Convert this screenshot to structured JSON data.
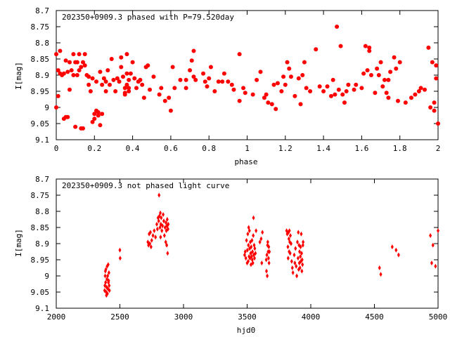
{
  "chart_data": [
    {
      "type": "scatter",
      "title": "202350+0909.3 phased with P=79.520day",
      "xlabel": "phase",
      "ylabel": "I[mag]",
      "xlim": [
        0,
        2
      ],
      "ylim": [
        8.7,
        9.1
      ],
      "y_inverted": true,
      "x_ticks": [
        "0",
        "0.2",
        "0.4",
        "0.6",
        "0.8",
        "1",
        "1.2",
        "1.4",
        "1.6",
        "1.8",
        "2"
      ],
      "x_tick_values": [
        0,
        0.2,
        0.4,
        0.6,
        0.8,
        1.0,
        1.2,
        1.4,
        1.6,
        1.8,
        2.0
      ],
      "y_ticks": [
        "8.7",
        "8.75",
        "8.8",
        "8.85",
        "8.9",
        "8.95",
        "9",
        "9.05",
        "9.1"
      ],
      "y_tick_values": [
        8.7,
        8.75,
        8.8,
        8.85,
        8.9,
        8.95,
        9.0,
        9.05,
        9.1
      ],
      "color": "#ff0000",
      "marker": "filled-circle",
      "points": [
        [
          0.0,
          8.835
        ],
        [
          0.0,
          9.0
        ],
        [
          0.01,
          8.885
        ],
        [
          0.01,
          8.965
        ],
        [
          0.02,
          8.895
        ],
        [
          0.02,
          8.825
        ],
        [
          0.03,
          8.9
        ],
        [
          0.04,
          8.895
        ],
        [
          0.04,
          9.035
        ],
        [
          0.05,
          8.855
        ],
        [
          0.05,
          9.03
        ],
        [
          0.06,
          8.89
        ],
        [
          0.06,
          9.03
        ],
        [
          0.07,
          8.86
        ],
        [
          0.07,
          8.945
        ],
        [
          0.08,
          8.885
        ],
        [
          0.09,
          8.835
        ],
        [
          0.09,
          8.9
        ],
        [
          0.1,
          8.86
        ],
        [
          0.1,
          9.06
        ],
        [
          0.11,
          8.86
        ],
        [
          0.11,
          8.9
        ],
        [
          0.12,
          8.835
        ],
        [
          0.12,
          8.885
        ],
        [
          0.13,
          9.065
        ],
        [
          0.13,
          8.875
        ],
        [
          0.14,
          9.065
        ],
        [
          0.14,
          8.86
        ],
        [
          0.15,
          8.835
        ],
        [
          0.15,
          8.87
        ],
        [
          0.16,
          8.9
        ],
        [
          0.17,
          8.93
        ],
        [
          0.17,
          8.905
        ],
        [
          0.18,
          8.95
        ],
        [
          0.19,
          9.045
        ],
        [
          0.19,
          8.91
        ],
        [
          0.2,
          9.035
        ],
        [
          0.2,
          9.02
        ],
        [
          0.21,
          9.01
        ],
        [
          0.21,
          8.92
        ],
        [
          0.22,
          9.025
        ],
        [
          0.22,
          9.015
        ],
        [
          0.23,
          8.89
        ],
        [
          0.23,
          9.055
        ],
        [
          0.24,
          9.02
        ],
        [
          0.24,
          8.93
        ],
        [
          0.25,
          8.91
        ],
        [
          0.26,
          8.95
        ],
        [
          0.26,
          8.92
        ],
        [
          0.27,
          8.885
        ],
        [
          0.28,
          8.93
        ],
        [
          0.29,
          8.85
        ],
        [
          0.3,
          8.915
        ],
        [
          0.31,
          8.95
        ],
        [
          0.32,
          8.91
        ],
        [
          0.33,
          8.92
        ],
        [
          0.34,
          8.875
        ],
        [
          0.34,
          8.845
        ],
        [
          0.35,
          8.905
        ],
        [
          0.36,
          8.94
        ],
        [
          0.36,
          8.955
        ],
        [
          0.36,
          8.96
        ],
        [
          0.37,
          8.835
        ],
        [
          0.37,
          8.93
        ],
        [
          0.37,
          8.895
        ],
        [
          0.38,
          8.95
        ],
        [
          0.38,
          8.915
        ],
        [
          0.38,
          8.94
        ],
        [
          0.39,
          8.895
        ],
        [
          0.4,
          8.86
        ],
        [
          0.41,
          8.91
        ],
        [
          0.42,
          8.94
        ],
        [
          0.43,
          8.92
        ],
        [
          0.44,
          8.915
        ],
        [
          0.45,
          8.93
        ],
        [
          0.46,
          8.97
        ],
        [
          0.47,
          8.875
        ],
        [
          0.48,
          8.87
        ],
        [
          0.49,
          8.945
        ],
        [
          0.51,
          8.905
        ],
        [
          0.54,
          8.96
        ],
        [
          0.55,
          8.94
        ],
        [
          0.57,
          8.98
        ],
        [
          0.59,
          8.97
        ],
        [
          0.6,
          9.01
        ],
        [
          0.61,
          8.875
        ],
        [
          0.62,
          8.94
        ],
        [
          0.65,
          8.915
        ],
        [
          0.68,
          8.915
        ],
        [
          0.68,
          8.94
        ],
        [
          0.7,
          8.885
        ],
        [
          0.71,
          8.855
        ],
        [
          0.72,
          8.825
        ],
        [
          0.72,
          8.905
        ],
        [
          0.73,
          8.915
        ],
        [
          0.77,
          8.895
        ],
        [
          0.78,
          8.92
        ],
        [
          0.79,
          8.935
        ],
        [
          0.8,
          8.91
        ],
        [
          0.81,
          8.875
        ],
        [
          0.83,
          8.95
        ],
        [
          0.85,
          8.92
        ],
        [
          0.87,
          8.92
        ],
        [
          0.88,
          8.895
        ],
        [
          0.9,
          8.92
        ],
        [
          0.92,
          8.93
        ],
        [
          0.93,
          8.945
        ],
        [
          0.96,
          8.835
        ],
        [
          0.96,
          8.98
        ],
        [
          0.98,
          8.94
        ],
        [
          0.99,
          8.955
        ],
        [
          1.03,
          8.96
        ],
        [
          1.05,
          8.915
        ],
        [
          1.07,
          8.89
        ],
        [
          1.09,
          8.97
        ],
        [
          1.1,
          8.96
        ],
        [
          1.11,
          8.985
        ],
        [
          1.13,
          8.99
        ],
        [
          1.14,
          8.93
        ],
        [
          1.15,
          9.005
        ],
        [
          1.16,
          8.925
        ],
        [
          1.18,
          8.95
        ],
        [
          1.19,
          8.905
        ],
        [
          1.2,
          8.93
        ],
        [
          1.21,
          8.86
        ],
        [
          1.22,
          8.88
        ],
        [
          1.23,
          8.905
        ],
        [
          1.25,
          8.965
        ],
        [
          1.27,
          8.91
        ],
        [
          1.28,
          8.99
        ],
        [
          1.29,
          8.9
        ],
        [
          1.3,
          8.86
        ],
        [
          1.31,
          8.94
        ],
        [
          1.33,
          8.95
        ],
        [
          1.36,
          8.82
        ],
        [
          1.38,
          8.935
        ],
        [
          1.4,
          8.95
        ],
        [
          1.42,
          8.935
        ],
        [
          1.44,
          8.965
        ],
        [
          1.45,
          8.915
        ],
        [
          1.46,
          8.96
        ],
        [
          1.47,
          8.75
        ],
        [
          1.48,
          8.945
        ],
        [
          1.49,
          8.81
        ],
        [
          1.5,
          8.96
        ],
        [
          1.51,
          8.985
        ],
        [
          1.52,
          8.95
        ],
        [
          1.53,
          8.93
        ],
        [
          1.56,
          8.945
        ],
        [
          1.57,
          8.93
        ],
        [
          1.6,
          8.94
        ],
        [
          1.61,
          8.895
        ],
        [
          1.62,
          8.81
        ],
        [
          1.63,
          8.885
        ],
        [
          1.64,
          8.815
        ],
        [
          1.64,
          8.825
        ],
        [
          1.65,
          8.9
        ],
        [
          1.67,
          8.955
        ],
        [
          1.68,
          8.88
        ],
        [
          1.69,
          8.9
        ],
        [
          1.7,
          8.86
        ],
        [
          1.71,
          8.935
        ],
        [
          1.72,
          8.915
        ],
        [
          1.73,
          8.955
        ],
        [
          1.74,
          8.97
        ],
        [
          1.74,
          8.915
        ],
        [
          1.75,
          8.89
        ],
        [
          1.77,
          8.845
        ],
        [
          1.78,
          8.88
        ],
        [
          1.79,
          8.98
        ],
        [
          1.8,
          8.86
        ],
        [
          1.83,
          8.985
        ],
        [
          1.86,
          8.97
        ],
        [
          1.88,
          8.96
        ],
        [
          1.9,
          8.95
        ],
        [
          1.91,
          8.94
        ],
        [
          1.93,
          8.945
        ],
        [
          1.95,
          8.815
        ],
        [
          1.96,
          9.0
        ],
        [
          1.97,
          8.86
        ],
        [
          1.98,
          8.985
        ],
        [
          1.98,
          9.01
        ],
        [
          1.99,
          8.87
        ],
        [
          2.0,
          9.05
        ],
        [
          1.99,
          8.91
        ]
      ]
    },
    {
      "type": "scatter",
      "title": "202350+0909.3 not phased light curve",
      "xlabel": "hjd0",
      "ylabel": "I[mag]",
      "xlim": [
        2000,
        5000
      ],
      "ylim": [
        8.7,
        9.1
      ],
      "y_inverted": true,
      "x_ticks": [
        "2000",
        "2500",
        "3000",
        "3500",
        "4000",
        "4500",
        "5000"
      ],
      "x_tick_values": [
        2000,
        2500,
        3000,
        3500,
        4000,
        4500,
        5000
      ],
      "y_ticks": [
        "8.7",
        "8.75",
        "8.8",
        "8.85",
        "8.9",
        "8.95",
        "9",
        "9.05",
        "9.1"
      ],
      "y_tick_values": [
        8.7,
        8.75,
        8.8,
        8.85,
        8.9,
        8.95,
        9.0,
        9.05,
        9.1
      ],
      "color": "#ff0000",
      "marker": "small-diamond",
      "points": [
        [
          2380,
          9.045
        ],
        [
          2382,
          9.03
        ],
        [
          2384,
          9.0
        ],
        [
          2386,
          8.985
        ],
        [
          2388,
          9.02
        ],
        [
          2390,
          8.98
        ],
        [
          2392,
          9.05
        ],
        [
          2394,
          9.06
        ],
        [
          2396,
          9.035
        ],
        [
          2398,
          9.01
        ],
        [
          2400,
          8.97
        ],
        [
          2402,
          9.055
        ],
        [
          2404,
          9.0
        ],
        [
          2406,
          9.04
        ],
        [
          2408,
          8.965
        ],
        [
          2410,
          9.02
        ],
        [
          2412,
          9.015
        ],
        [
          2414,
          8.99
        ],
        [
          2416,
          9.03
        ],
        [
          2418,
          9.045
        ],
        [
          2500,
          8.92
        ],
        [
          2502,
          8.945
        ],
        [
          2720,
          8.895
        ],
        [
          2725,
          8.905
        ],
        [
          2730,
          8.87
        ],
        [
          2735,
          8.9
        ],
        [
          2740,
          8.865
        ],
        [
          2745,
          8.91
        ],
        [
          2750,
          8.89
        ],
        [
          2760,
          8.875
        ],
        [
          2770,
          8.86
        ],
        [
          2780,
          8.88
        ],
        [
          2790,
          8.84
        ],
        [
          2795,
          8.855
        ],
        [
          2800,
          8.82
        ],
        [
          2805,
          8.83
        ],
        [
          2808,
          8.75
        ],
        [
          2810,
          8.815
        ],
        [
          2815,
          8.85
        ],
        [
          2818,
          8.805
        ],
        [
          2820,
          8.88
        ],
        [
          2822,
          8.84
        ],
        [
          2825,
          8.82
        ],
        [
          2830,
          8.86
        ],
        [
          2835,
          8.845
        ],
        [
          2840,
          8.81
        ],
        [
          2845,
          8.83
        ],
        [
          2850,
          8.875
        ],
        [
          2855,
          8.85
        ],
        [
          2860,
          8.895
        ],
        [
          2862,
          8.835
        ],
        [
          2865,
          8.86
        ],
        [
          2868,
          8.905
        ],
        [
          2870,
          8.845
        ],
        [
          2872,
          8.825
        ],
        [
          2875,
          8.93
        ],
        [
          2878,
          8.855
        ],
        [
          2880,
          8.84
        ],
        [
          3480,
          8.935
        ],
        [
          3485,
          8.925
        ],
        [
          3490,
          8.945
        ],
        [
          3495,
          8.89
        ],
        [
          3500,
          8.96
        ],
        [
          3502,
          8.92
        ],
        [
          3505,
          8.87
        ],
        [
          3508,
          8.955
        ],
        [
          3510,
          8.905
        ],
        [
          3512,
          8.85
        ],
        [
          3515,
          8.94
        ],
        [
          3518,
          8.86
        ],
        [
          3520,
          8.915
        ],
        [
          3522,
          8.945
        ],
        [
          3525,
          8.895
        ],
        [
          3528,
          8.93
        ],
        [
          3530,
          8.965
        ],
        [
          3532,
          8.91
        ],
        [
          3535,
          8.94
        ],
        [
          3538,
          8.89
        ],
        [
          3540,
          8.95
        ],
        [
          3542,
          8.925
        ],
        [
          3545,
          8.96
        ],
        [
          3548,
          8.875
        ],
        [
          3550,
          8.82
        ],
        [
          3552,
          8.935
        ],
        [
          3555,
          8.905
        ],
        [
          3558,
          8.945
        ],
        [
          3560,
          8.915
        ],
        [
          3565,
          8.93
        ],
        [
          3570,
          8.86
        ],
        [
          3600,
          8.895
        ],
        [
          3610,
          8.885
        ],
        [
          3615,
          8.96
        ],
        [
          3620,
          8.865
        ],
        [
          3650,
          8.95
        ],
        [
          3652,
          8.985
        ],
        [
          3655,
          8.935
        ],
        [
          3658,
          9.0
        ],
        [
          3660,
          8.905
        ],
        [
          3662,
          8.895
        ],
        [
          3665,
          8.925
        ],
        [
          3668,
          8.945
        ],
        [
          3670,
          8.91
        ],
        [
          3672,
          8.96
        ],
        [
          3675,
          8.925
        ],
        [
          3810,
          8.86
        ],
        [
          3815,
          8.87
        ],
        [
          3820,
          8.91
        ],
        [
          3822,
          8.945
        ],
        [
          3825,
          8.865
        ],
        [
          3828,
          8.885
        ],
        [
          3830,
          8.925
        ],
        [
          3832,
          8.86
        ],
        [
          3835,
          8.895
        ],
        [
          3838,
          8.93
        ],
        [
          3840,
          8.875
        ],
        [
          3845,
          8.9
        ],
        [
          3850,
          8.955
        ],
        [
          3855,
          8.975
        ],
        [
          3860,
          8.99
        ],
        [
          3870,
          8.935
        ],
        [
          3875,
          8.96
        ],
        [
          3880,
          8.915
        ],
        [
          3885,
          8.97
        ],
        [
          3890,
          9.0
        ],
        [
          3895,
          8.895
        ],
        [
          3900,
          8.945
        ],
        [
          3902,
          8.865
        ],
        [
          3905,
          8.98
        ],
        [
          3908,
          8.905
        ],
        [
          3910,
          8.96
        ],
        [
          3912,
          8.925
        ],
        [
          3915,
          8.975
        ],
        [
          3918,
          8.94
        ],
        [
          3920,
          8.91
        ],
        [
          3922,
          8.955
        ],
        [
          3925,
          8.87
        ],
        [
          3928,
          8.93
        ],
        [
          3930,
          8.985
        ],
        [
          3932,
          8.95
        ],
        [
          3935,
          8.965
        ],
        [
          3938,
          8.905
        ],
        [
          3940,
          8.895
        ],
        [
          4540,
          8.975
        ],
        [
          4550,
          8.995
        ],
        [
          4640,
          8.91
        ],
        [
          4670,
          8.92
        ],
        [
          4690,
          8.935
        ],
        [
          4940,
          8.875
        ],
        [
          4950,
          8.96
        ],
        [
          4960,
          8.905
        ],
        [
          4980,
          8.97
        ],
        [
          5000,
          8.86
        ]
      ]
    }
  ]
}
